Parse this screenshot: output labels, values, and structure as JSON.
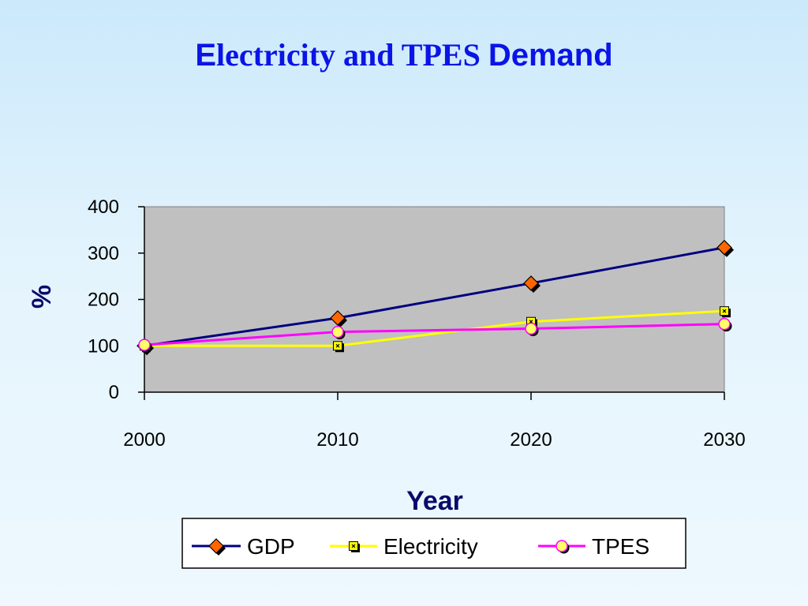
{
  "title": {
    "part1": "E",
    "part2": "lectricity and TPES ",
    "part3": "Demand"
  },
  "chart_data": {
    "type": "line",
    "x": [
      2000,
      2010,
      2020,
      2030
    ],
    "x_ticks": [
      "2000",
      "2010",
      "2020",
      "2030"
    ],
    "y_ticks": [
      "0",
      "100",
      "200",
      "300",
      "400"
    ],
    "xlabel": "Year",
    "ylabel": "%",
    "ylim": [
      0,
      400
    ],
    "grid": false,
    "legend_position": "bottom",
    "plot_background": "#c0c0c0",
    "series": [
      {
        "name": "GDP",
        "values": [
          100,
          160,
          235,
          312
        ],
        "color": "#000080",
        "marker": "diamond",
        "marker_color": "#ff6600"
      },
      {
        "name": "Electricity",
        "values": [
          100,
          100,
          152,
          175
        ],
        "color": "#ffff00",
        "marker": "square",
        "marker_color": "#ffff00"
      },
      {
        "name": "TPES",
        "values": [
          102,
          130,
          137,
          147
        ],
        "color": "#ff00ff",
        "marker": "circle",
        "marker_color": "#ffff66"
      }
    ]
  }
}
